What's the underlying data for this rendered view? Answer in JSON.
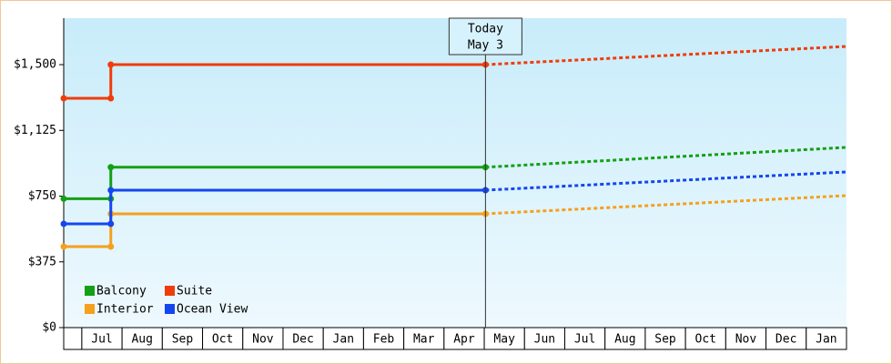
{
  "chart_data": {
    "type": "line",
    "ylim": [
      0,
      1765
    ],
    "yticks": [
      {
        "value": 0,
        "label": "$0"
      },
      {
        "value": 375,
        "label": "$375"
      },
      {
        "value": 750,
        "label": "$750"
      },
      {
        "value": 1125,
        "label": "$1,125"
      },
      {
        "value": 1500,
        "label": "$1,500"
      }
    ],
    "xlim": [
      -0.45,
      19
    ],
    "xticks": [
      {
        "value": 0,
        "label": "Jul"
      },
      {
        "value": 1,
        "label": "Aug"
      },
      {
        "value": 2,
        "label": "Sep"
      },
      {
        "value": 3,
        "label": "Oct"
      },
      {
        "value": 4,
        "label": "Nov"
      },
      {
        "value": 5,
        "label": "Dec"
      },
      {
        "value": 6,
        "label": "Jan"
      },
      {
        "value": 7,
        "label": "Feb"
      },
      {
        "value": 8,
        "label": "Mar"
      },
      {
        "value": 9,
        "label": "Apr"
      },
      {
        "value": 10,
        "label": "May"
      },
      {
        "value": 11,
        "label": "Jun"
      },
      {
        "value": 12,
        "label": "Jul"
      },
      {
        "value": 13,
        "label": "Aug"
      },
      {
        "value": 14,
        "label": "Sep"
      },
      {
        "value": 15,
        "label": "Oct"
      },
      {
        "value": 16,
        "label": "Nov"
      },
      {
        "value": 17,
        "label": "Dec"
      },
      {
        "value": 18,
        "label": "Jan"
      }
    ],
    "annotation": {
      "x": 10.03,
      "lines": [
        "Today",
        "May 3"
      ]
    },
    "legend": "lower-left",
    "series": [
      {
        "name": "Balcony",
        "color": "#14a014",
        "x": [
          -0.45,
          0.72,
          0.72,
          10.03
        ],
        "values": [
          735,
          735,
          915,
          915
        ],
        "forecast": {
          "x": [
            10.03,
            19
          ],
          "values": [
            915,
            1028
          ]
        }
      },
      {
        "name": "Suite",
        "color": "#f03c0a",
        "x": [
          -0.45,
          0.72,
          0.72,
          10.03
        ],
        "values": [
          1308,
          1308,
          1500,
          1500
        ],
        "forecast": {
          "x": [
            10.03,
            19
          ],
          "values": [
            1500,
            1604
          ]
        }
      },
      {
        "name": "Interior",
        "color": "#f5a01e",
        "x": [
          -0.45,
          0.72,
          0.72,
          10.03
        ],
        "values": [
          462,
          462,
          649,
          649
        ],
        "forecast": {
          "x": [
            10.03,
            19
          ],
          "values": [
            649,
            753
          ]
        }
      },
      {
        "name": "Ocean View",
        "color": "#1446f0",
        "x": [
          -0.45,
          0.72,
          0.72,
          10.03
        ],
        "values": [
          592,
          592,
          784,
          784
        ],
        "forecast": {
          "x": [
            10.03,
            19
          ],
          "values": [
            784,
            888
          ]
        }
      }
    ]
  }
}
